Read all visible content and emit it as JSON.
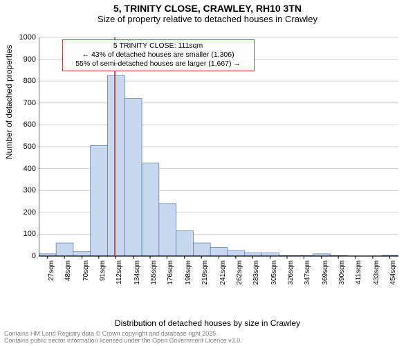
{
  "title": "5, TRINITY CLOSE, CRAWLEY, RH10 3TN",
  "subtitle": "Size of property relative to detached houses in Crawley",
  "ylabel": "Number of detached properties",
  "xlabel": "Distribution of detached houses by size in Crawley",
  "footer_line1": "Contains HM Land Registry data © Crown copyright and database right 2025.",
  "footer_line2": "Contains public sector information licensed under the Open Government Licence v3.0.",
  "chart": {
    "type": "histogram",
    "ylim": [
      0,
      1000
    ],
    "ytick_step": 100,
    "background_color": "#ffffff",
    "grid_color": "#d0d0d0",
    "axis_color": "#000000",
    "bar_fill": "#c8d8ef",
    "bar_stroke": "#6080b0",
    "marker_line_color": "#c03030",
    "marker_x_value": 111,
    "x_tick_labels": [
      "27sqm",
      "48sqm",
      "70sqm",
      "91sqm",
      "112sqm",
      "134sqm",
      "155sqm",
      "176sqm",
      "198sqm",
      "219sqm",
      "241sqm",
      "262sqm",
      "283sqm",
      "305sqm",
      "326sqm",
      "347sqm",
      "369sqm",
      "390sqm",
      "411sqm",
      "433sqm",
      "454sqm"
    ],
    "x_tick_values": [
      27,
      48,
      70,
      91,
      112,
      134,
      155,
      176,
      198,
      219,
      241,
      262,
      283,
      305,
      326,
      347,
      369,
      390,
      411,
      433,
      454
    ],
    "xlim": [
      16,
      465
    ],
    "bin_width": 21.4,
    "bins": [
      {
        "start": 16.3,
        "count": 10
      },
      {
        "start": 37.7,
        "count": 60
      },
      {
        "start": 59.1,
        "count": 20
      },
      {
        "start": 80.5,
        "count": 505
      },
      {
        "start": 101.9,
        "count": 825
      },
      {
        "start": 123.3,
        "count": 720
      },
      {
        "start": 144.7,
        "count": 425
      },
      {
        "start": 166.1,
        "count": 240
      },
      {
        "start": 187.5,
        "count": 115
      },
      {
        "start": 208.9,
        "count": 60
      },
      {
        "start": 230.3,
        "count": 40
      },
      {
        "start": 251.7,
        "count": 25
      },
      {
        "start": 273.1,
        "count": 15
      },
      {
        "start": 294.5,
        "count": 15
      },
      {
        "start": 315.9,
        "count": 2
      },
      {
        "start": 337.3,
        "count": 2
      },
      {
        "start": 358.7,
        "count": 10
      },
      {
        "start": 380.1,
        "count": 2
      },
      {
        "start": 401.5,
        "count": 0
      },
      {
        "start": 422.9,
        "count": 0
      },
      {
        "start": 444.3,
        "count": 3
      }
    ]
  },
  "annotation": {
    "line1": "5 TRINITY CLOSE: 111sqm",
    "line2": "← 43% of detached houses are smaller (1,306)",
    "line3": "55% of semi-detached houses are larger (1,667) →",
    "border_color": "#c04040"
  }
}
